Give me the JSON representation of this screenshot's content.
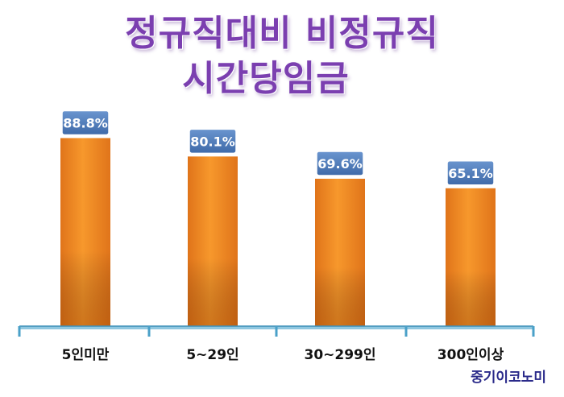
{
  "title_line1": "정규직대비 비정규직",
  "title_line2": "시간당임금",
  "watermark": "중기이코노미",
  "colors": {
    "title": "#7b3fb0",
    "bar": "#f28a1e",
    "label_box": "#4a78b8",
    "axis": "#4aa0c8"
  },
  "chart_data": {
    "type": "bar",
    "title": "정규직대비 비정규직 시간당임금",
    "categories": [
      "5인미만",
      "5~29인",
      "30~299인",
      "300인이상"
    ],
    "values": [
      88.8,
      80.1,
      69.6,
      65.1
    ],
    "value_labels": [
      "88.8%",
      "80.1%",
      "69.6%",
      "65.1%"
    ],
    "unit": "%",
    "xlabel": "",
    "ylabel": "",
    "ylim": [
      0,
      100
    ],
    "grid": false
  }
}
